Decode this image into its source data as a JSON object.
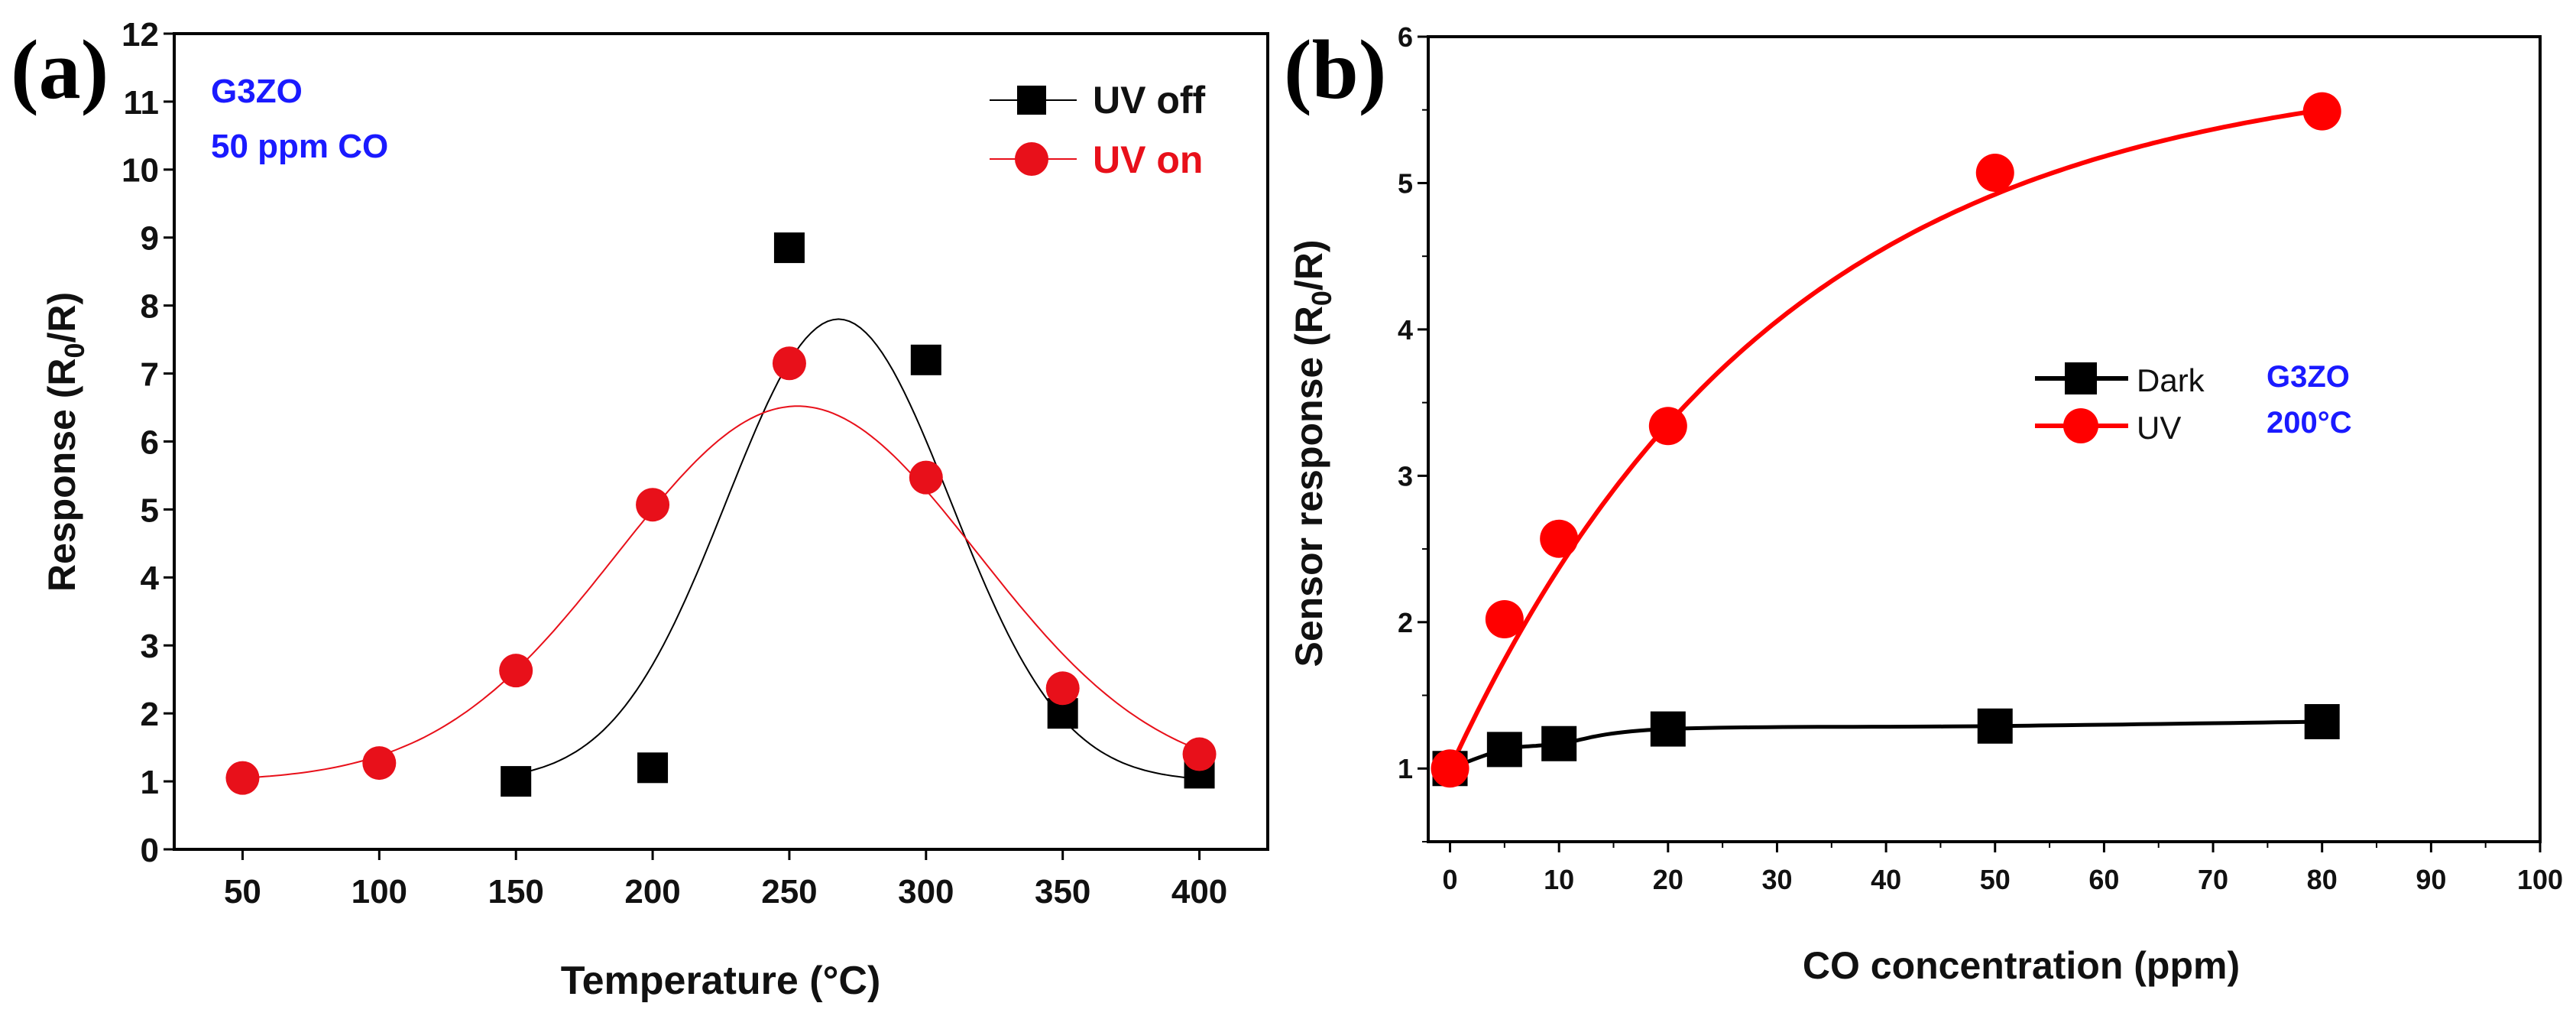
{
  "chart_data": [
    {
      "type": "scatter",
      "panel_label": "(a)",
      "xlabel": "Temperature (°C)",
      "ylabel": "Response (R0/R)",
      "ylabel_parts": [
        "Response (R",
        "0",
        "/R)"
      ],
      "xlim": [
        25,
        425
      ],
      "ylim": [
        0,
        12
      ],
      "xticks": [
        50,
        100,
        150,
        200,
        250,
        300,
        350,
        400
      ],
      "yticks": [
        0,
        1,
        2,
        3,
        4,
        5,
        6,
        7,
        8,
        9,
        10,
        11,
        12
      ],
      "grid": false,
      "annotations": [
        "G3ZO",
        "50 ppm CO"
      ],
      "annotation_color": "#1a1aff",
      "legend_position": "top-right",
      "series": [
        {
          "name": "UV off",
          "color": "#000000",
          "marker": "square",
          "x": [
            150,
            200,
            250,
            300,
            350,
            400
          ],
          "y": [
            1.0,
            1.2,
            8.85,
            7.2,
            2.0,
            1.12
          ],
          "fit": {
            "type": "gaussian",
            "y0": 1.0,
            "A": 6.8,
            "xc": 268,
            "w": 41,
            "from": 150,
            "to": 400
          }
        },
        {
          "name": "UV on",
          "color": "#e8101a",
          "marker": "circle",
          "x": [
            50,
            100,
            150,
            200,
            250,
            300,
            350,
            400
          ],
          "y": [
            1.05,
            1.27,
            2.63,
            5.07,
            7.15,
            5.47,
            2.37,
            1.4
          ],
          "fit": {
            "type": "gaussian",
            "y0": 1.0,
            "A": 5.52,
            "xc": 253,
            "w": 66,
            "from": 50,
            "to": 400
          }
        }
      ]
    },
    {
      "type": "line",
      "panel_label": "(b)",
      "xlabel": "CO concentration (ppm)",
      "ylabel": "Sensor response (R0/R)",
      "ylabel_parts": [
        "Sensor response (R",
        "0",
        "/R)"
      ],
      "xlim": [
        -2,
        100
      ],
      "ylim": [
        0.5,
        6
      ],
      "xticks": [
        0,
        10,
        20,
        30,
        40,
        50,
        60,
        70,
        80,
        90,
        100
      ],
      "yticks": [
        1,
        2,
        3,
        4,
        5,
        6
      ],
      "grid": false,
      "annotations": [
        "G3ZO",
        "200°C"
      ],
      "annotation_color": "#1a1aff",
      "legend_position": "center-right",
      "series": [
        {
          "name": "Dark",
          "color": "#000000",
          "marker": "square",
          "x": [
            0,
            5,
            10,
            20,
            50,
            80
          ],
          "y": [
            1.0,
            1.13,
            1.17,
            1.27,
            1.29,
            1.32
          ],
          "fit": {
            "type": "spline"
          }
        },
        {
          "name": "UV",
          "color": "#ff0000",
          "marker": "circle",
          "x": [
            0,
            5,
            10,
            20,
            50,
            80
          ],
          "y": [
            1.0,
            2.02,
            2.57,
            3.34,
            5.07,
            5.49
          ],
          "fit": {
            "type": "exp_saturation",
            "a": 5.836,
            "b": 4.836,
            "t": 30,
            "from": 0,
            "to": 80
          }
        }
      ]
    }
  ]
}
